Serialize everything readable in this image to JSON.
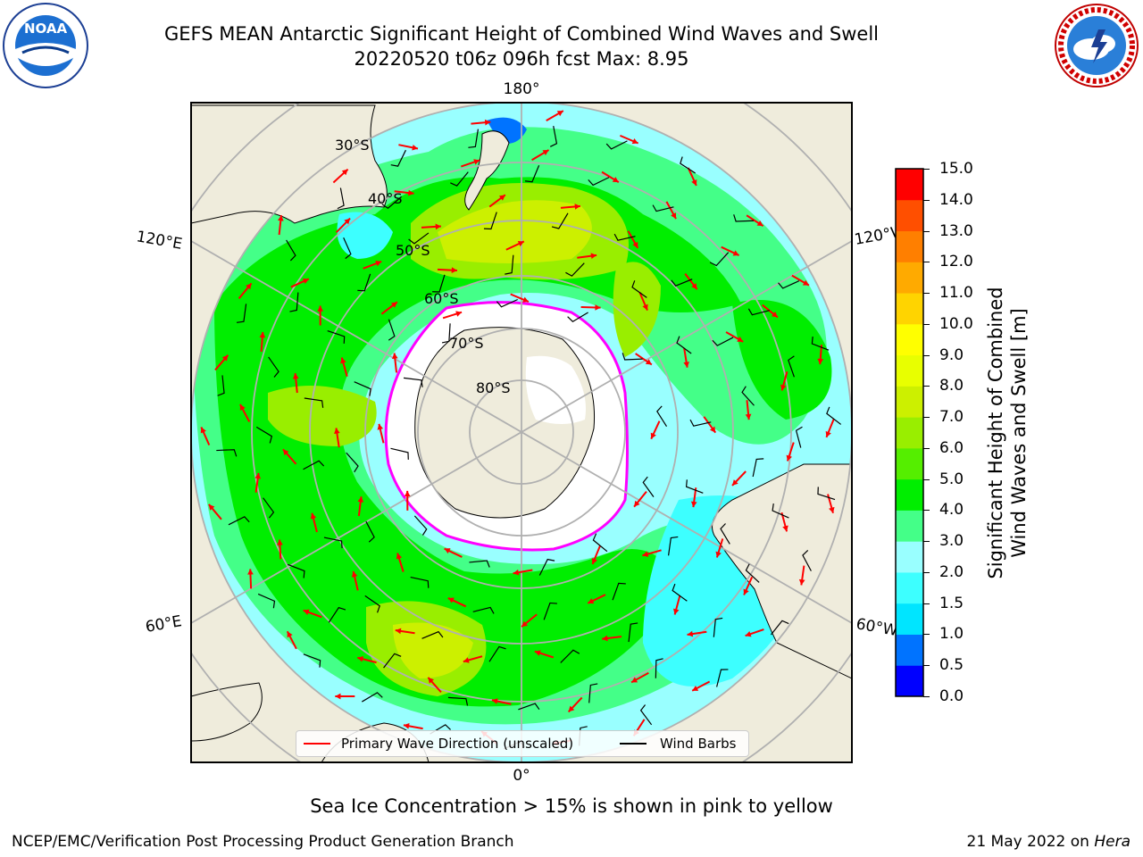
{
  "title": {
    "line1": "GEFS MEAN Antarctic Significant Height of Combined Wind Waves and Swell",
    "line2": "20220520 t06z 096h fcst   Max: 8.95"
  },
  "logos": {
    "left": {
      "icon": "noaa-logo",
      "text": "NOAA",
      "ring_text": "NATIONAL OCEANIC AND ATMOSPHERIC ADMINISTRATION · U.S. DEPARTMENT OF COMMERCE"
    },
    "right": {
      "icon": "nws-logo",
      "ring_text": "NATIONAL WEATHER SERVICE"
    }
  },
  "map": {
    "projection": "south-polar-stereographic",
    "longitude_labels": {
      "top": "180°",
      "bottom": "0°",
      "left_upper": "120°E",
      "left_lower": "60°E",
      "right_upper": "120°W",
      "right_lower": "60°W"
    },
    "latitude_labels": [
      "30°S",
      "40°S",
      "50°S",
      "60°S",
      "70°S",
      "80°S"
    ],
    "colors": {
      "land": "#efecdc",
      "ice": "#ffffff",
      "graticule": "#b0b0b0",
      "coast": "#000000",
      "ice_edge": "#ff00ff"
    }
  },
  "legend": {
    "wave_label": "Primary Wave Direction (unscaled)",
    "wave_color": "#ff0000",
    "barb_label": "Wind Barbs",
    "barb_color": "#000000"
  },
  "colorbar": {
    "label_line1": "Significant Height of Combined",
    "label_line2": "Wind Waves and Swell [m]",
    "levels": [
      "0.0",
      "0.5",
      "1.0",
      "1.5",
      "2.0",
      "3.0",
      "4.0",
      "5.0",
      "6.0",
      "7.0",
      "8.0",
      "9.0",
      "10.0",
      "11.0",
      "12.0",
      "13.0",
      "14.0",
      "15.0"
    ],
    "colors": [
      "#0000ff",
      "#0073ff",
      "#00e5ff",
      "#3dffff",
      "#99ffff",
      "#44ff88",
      "#00ee00",
      "#55ee00",
      "#99ee00",
      "#ccf000",
      "#e8ff00",
      "#ffff00",
      "#ffd400",
      "#ffaa00",
      "#ff7f00",
      "#ff4f00",
      "#ff0000"
    ]
  },
  "note": "Sea Ice Concentration > 15% is shown in pink to yellow",
  "footer": {
    "left": "NCEP/EMC/Verification Post Processing Product Generation Branch",
    "right_prefix": "21 May 2022 on ",
    "right_host": "Hera"
  }
}
